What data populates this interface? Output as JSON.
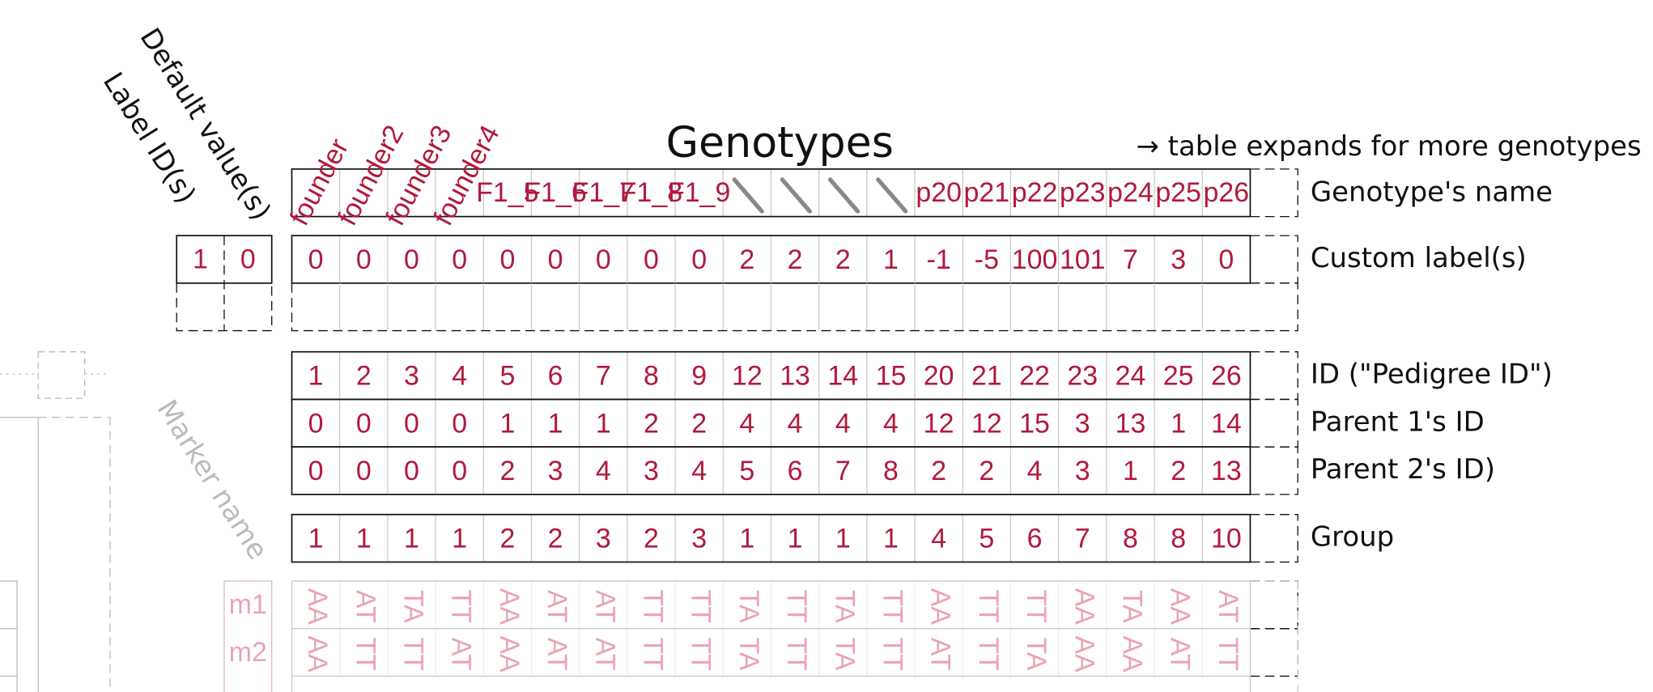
{
  "title": "Genotypes",
  "expand_note": "→ table expands for more genotypes",
  "column_headers": {
    "label_ids": "Label ID(s)",
    "default_values": "Default value(s)",
    "marker_name": "Marker name"
  },
  "custom_label_defaults": {
    "label_id": 1,
    "default_value": 0
  },
  "genotype_row_label": "Genotype's name",
  "genotype_names": [
    "founder",
    "founder2",
    "founder3",
    "founder4",
    "F1_5",
    "F1_6",
    "F1_7",
    "F1_8",
    "F1_9",
    null,
    null,
    null,
    null,
    "p20",
    "p21",
    "p22",
    "p23",
    "p24",
    "p25",
    "p26"
  ],
  "custom_labels": {
    "label": "Custom label(s)",
    "values": [
      0,
      0,
      0,
      0,
      0,
      0,
      0,
      0,
      0,
      2,
      2,
      2,
      1,
      -1,
      -5,
      100,
      101,
      7,
      3,
      0
    ]
  },
  "pedigree_rows": [
    {
      "label": "ID (\"Pedigree ID\")",
      "values": [
        1,
        2,
        3,
        4,
        5,
        6,
        7,
        8,
        9,
        12,
        13,
        14,
        15,
        20,
        21,
        22,
        23,
        24,
        25,
        26
      ]
    },
    {
      "label": "Parent 1's ID",
      "values": [
        0,
        0,
        0,
        0,
        1,
        1,
        1,
        2,
        2,
        4,
        4,
        4,
        4,
        12,
        12,
        15,
        3,
        13,
        1,
        14
      ]
    },
    {
      "label": "Parent 2's ID)",
      "values": [
        0,
        0,
        0,
        0,
        2,
        3,
        4,
        3,
        4,
        5,
        6,
        7,
        8,
        2,
        2,
        4,
        3,
        1,
        2,
        13
      ]
    }
  ],
  "group": {
    "label": "Group",
    "values": [
      1,
      1,
      1,
      1,
      2,
      2,
      3,
      2,
      3,
      1,
      1,
      1,
      1,
      4,
      5,
      6,
      7,
      8,
      8,
      10
    ]
  },
  "markers": [
    {
      "name": "m1",
      "calls": [
        "AA",
        "AT",
        "TA",
        "TT",
        "AA",
        "AT",
        "AT",
        "TT",
        "TT",
        "TA",
        "TT",
        "TA",
        "TT",
        "AA",
        "TT",
        "TT",
        "AA",
        "TA",
        "AA",
        "AT"
      ]
    },
    {
      "name": "m2",
      "calls": [
        "AA",
        "TT",
        "TT",
        "AT",
        "AA",
        "AT",
        "AT",
        "TT",
        "TT",
        "TA",
        "TT",
        "TA",
        "TT",
        "AT",
        "TT",
        "TA",
        "AA",
        "AA",
        "AT",
        "TT"
      ]
    }
  ]
}
